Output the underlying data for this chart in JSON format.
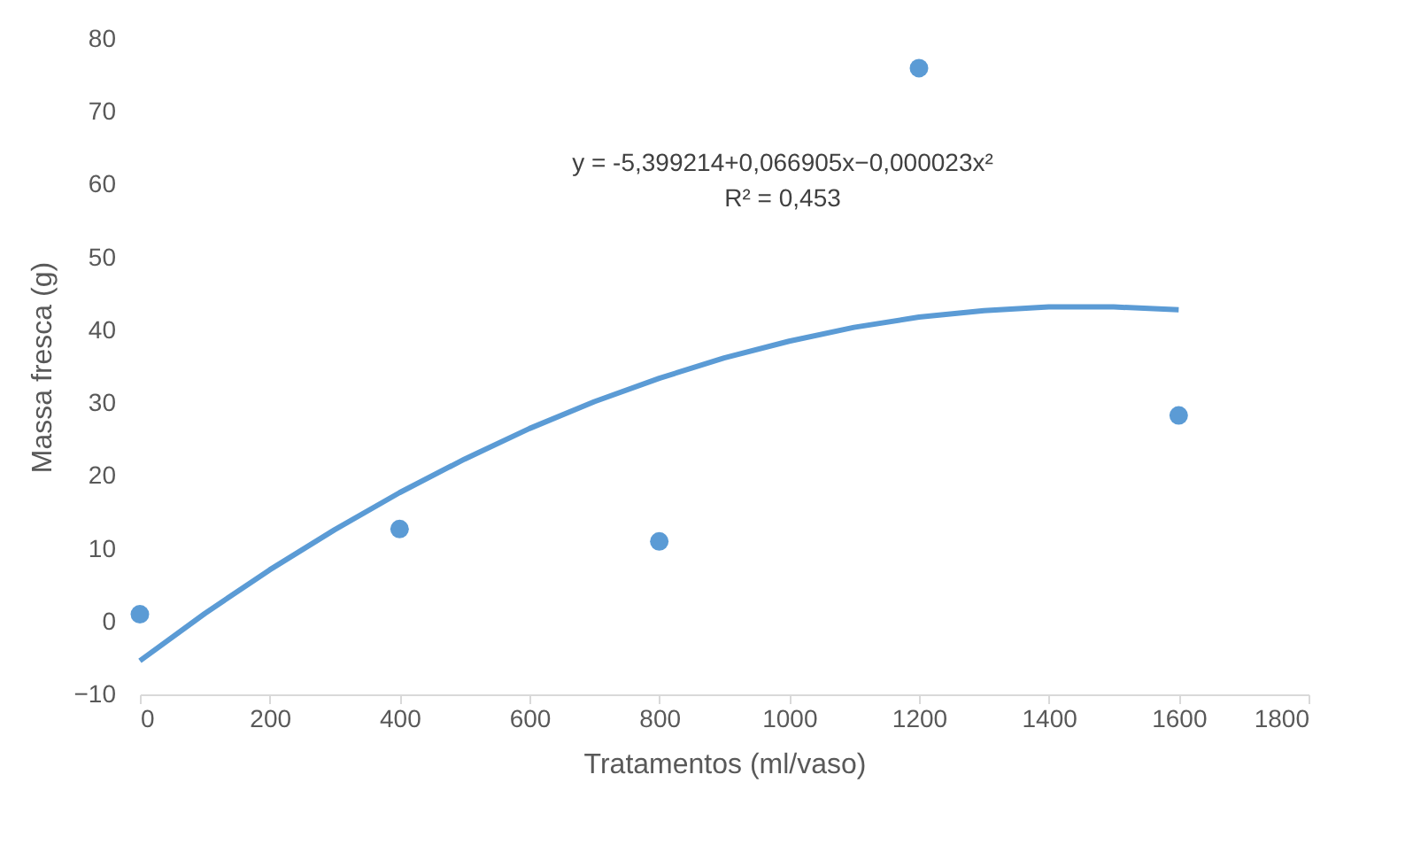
{
  "chart_data": {
    "type": "scatter",
    "xlabel": "Tratamentos (ml/vaso)",
    "ylabel": "Massa fresca (g)",
    "xlim": [
      0,
      1800
    ],
    "xticks": [
      0,
      200,
      400,
      600,
      800,
      1000,
      1200,
      1400,
      1600,
      1800
    ],
    "ylim": [
      -10,
      80
    ],
    "yticks": [
      -10,
      0,
      10,
      20,
      30,
      40,
      50,
      60,
      70,
      80
    ],
    "grid": false,
    "series": [
      {
        "color": "#5b9bd5",
        "marker": "circle",
        "x": [
          0,
          400,
          800,
          1200,
          1600
        ],
        "values": [
          1,
          12.7,
          11,
          76,
          28.3
        ]
      },
      {
        "type": "line",
        "color": "#5b9bd5",
        "marker": "none",
        "line_style": "solid",
        "x": [
          0,
          100,
          200,
          300,
          400,
          500,
          600,
          700,
          800,
          900,
          1000,
          1100,
          1200,
          1300,
          1400,
          1500,
          1600
        ],
        "values": [
          -5.4,
          1.1,
          7.1,
          12.6,
          17.7,
          22.3,
          26.5,
          30.2,
          33.4,
          36.2,
          38.5,
          40.4,
          41.8,
          42.7,
          43.2,
          43.2,
          42.8
        ]
      }
    ],
    "annotations": [
      "y = -5,399214+0,066905x−0,000023x²",
      "R² = 0,453"
    ]
  }
}
